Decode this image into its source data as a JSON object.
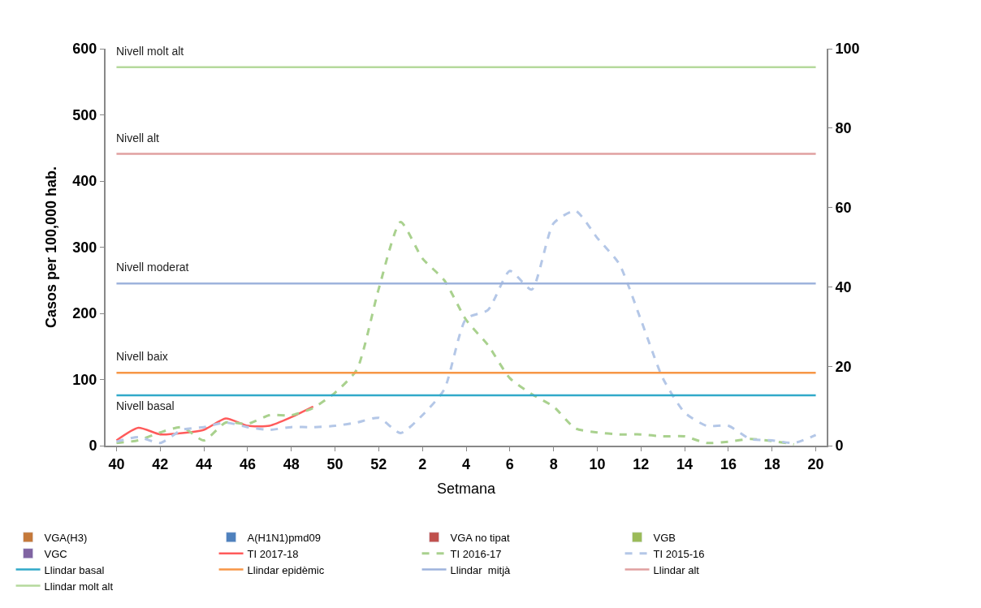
{
  "chart_data": {
    "type": "line",
    "xlabel": "Setmana",
    "ylabel": "Casos per 100,000 hab.",
    "categories": [
      "40",
      null,
      "42",
      null,
      "44",
      null,
      "46",
      null,
      "48",
      null,
      "50",
      null,
      "52",
      null,
      "2",
      null,
      "4",
      null,
      "6",
      null,
      "8",
      null,
      "10",
      null,
      "12",
      null,
      "14",
      null,
      "16",
      null,
      "18",
      null,
      "20"
    ],
    "series": [
      {
        "name": "VGA(H3)",
        "type": "bar",
        "axis": "y2",
        "color": "#c5793a",
        "values": [
          null,
          null,
          null,
          null,
          null,
          null,
          null,
          null,
          null,
          null,
          null,
          null,
          null,
          null,
          null,
          null,
          null,
          null,
          null,
          null,
          null,
          null,
          null,
          null,
          null,
          null,
          null,
          null,
          null,
          null,
          null,
          null,
          null
        ]
      },
      {
        "name": "A(H1N1)pmd09",
        "type": "bar",
        "axis": "y2",
        "color": "#4f81bd",
        "values": [
          null,
          null,
          null,
          null,
          null,
          null,
          null,
          null,
          null,
          null,
          null,
          null,
          null,
          null,
          null,
          null,
          null,
          null,
          null,
          null,
          null,
          null,
          null,
          null,
          null,
          null,
          null,
          null,
          null,
          null,
          null,
          null,
          null
        ]
      },
      {
        "name": "VGA no tipat",
        "type": "bar",
        "axis": "y2",
        "color": "#c0504d",
        "values": [
          null,
          null,
          null,
          null,
          null,
          null,
          null,
          null,
          null,
          null,
          null,
          null,
          null,
          null,
          null,
          null,
          null,
          null,
          null,
          null,
          null,
          null,
          null,
          null,
          null,
          null,
          null,
          null,
          null,
          null,
          null,
          null,
          null
        ]
      },
      {
        "name": "VGB",
        "type": "bar",
        "axis": "y2",
        "color": "#9bbb59",
        "values": [
          null,
          null,
          null,
          null,
          null,
          null,
          null,
          null,
          null,
          null,
          null,
          null,
          null,
          null,
          null,
          null,
          null,
          null,
          null,
          null,
          null,
          null,
          null,
          null,
          null,
          null,
          null,
          null,
          null,
          null,
          null,
          null,
          null
        ]
      },
      {
        "name": "VGC",
        "type": "bar",
        "axis": "y2",
        "color": "#8064a2",
        "values": [
          null,
          null,
          null,
          null,
          null,
          null,
          null,
          null,
          null,
          null,
          null,
          null,
          null,
          null,
          null,
          null,
          null,
          null,
          null,
          null,
          null,
          null,
          null,
          null,
          null,
          null,
          null,
          null,
          null,
          null,
          null,
          null,
          null
        ]
      },
      {
        "name": "TI 2017-18",
        "color": "#ff5b5b",
        "line_style": "solid",
        "values": [
          8,
          27,
          17,
          19,
          24,
          41,
          30,
          30,
          43,
          59,
          null,
          null,
          null,
          null,
          null,
          null,
          null,
          null,
          null,
          null,
          null,
          null,
          null,
          null,
          null,
          null,
          null,
          null,
          null,
          null,
          null,
          null,
          null
        ]
      },
      {
        "name": "TI 2016-17",
        "color": "#a9d18e",
        "line_style": "dashed",
        "values": [
          4,
          8,
          20,
          28,
          8,
          35,
          33,
          46,
          46,
          57,
          80,
          115,
          237,
          338,
          283,
          250,
          190,
          152,
          102,
          78,
          59,
          26,
          20,
          17,
          17,
          14,
          14,
          4,
          6,
          10,
          7,
          2,
          null
        ]
      },
      {
        "name": "TI 2015-16",
        "color": "#b4c7e7",
        "line_style": "dashed",
        "values": [
          6,
          13,
          4,
          24,
          28,
          35,
          28,
          24,
          28,
          28,
          30,
          35,
          42,
          19,
          46,
          85,
          192,
          205,
          264,
          236,
          336,
          355,
          314,
          275,
          190,
          102,
          50,
          30,
          30,
          10,
          8,
          4,
          16
        ]
      },
      {
        "name": "Llindar basal",
        "color": "#31a9c9",
        "line_style": "solid",
        "values": [
          76,
          76,
          76,
          76,
          76,
          76,
          76,
          76,
          76,
          76,
          76,
          76,
          76,
          76,
          76,
          76,
          76,
          76,
          76,
          76,
          76,
          76,
          76,
          76,
          76,
          76,
          76,
          76,
          76,
          76,
          76,
          76,
          76
        ]
      },
      {
        "name": "Llindar epidèmic",
        "color": "#f79646",
        "line_style": "solid",
        "values": [
          110,
          110,
          110,
          110,
          110,
          110,
          110,
          110,
          110,
          110,
          110,
          110,
          110,
          110,
          110,
          110,
          110,
          110,
          110,
          110,
          110,
          110,
          110,
          110,
          110,
          110,
          110,
          110,
          110,
          110,
          110,
          110,
          110
        ]
      },
      {
        "name": "Llindar  mitjà",
        "color": "#9eb3dc",
        "line_style": "solid",
        "values": [
          245,
          245,
          245,
          245,
          245,
          245,
          245,
          245,
          245,
          245,
          245,
          245,
          245,
          245,
          245,
          245,
          245,
          245,
          245,
          245,
          245,
          245,
          245,
          245,
          245,
          245,
          245,
          245,
          245,
          245,
          245,
          245,
          245
        ]
      },
      {
        "name": "Llindar alt",
        "color": "#e0a0a0",
        "line_style": "solid",
        "values": [
          441,
          441,
          441,
          441,
          441,
          441,
          441,
          441,
          441,
          441,
          441,
          441,
          441,
          441,
          441,
          441,
          441,
          441,
          441,
          441,
          441,
          441,
          441,
          441,
          441,
          441,
          441,
          441,
          441,
          441,
          441,
          441,
          441
        ]
      },
      {
        "name": "Llindar molt alt",
        "color": "#b5d99c",
        "line_style": "solid",
        "values": [
          572,
          572,
          572,
          572,
          572,
          572,
          572,
          572,
          572,
          572,
          572,
          572,
          572,
          572,
          572,
          572,
          572,
          572,
          572,
          572,
          572,
          572,
          572,
          572,
          572,
          572,
          572,
          572,
          572,
          572,
          572,
          572,
          572
        ]
      }
    ],
    "annotations": [
      {
        "text": "Nivell molt alt",
        "x": "40",
        "y": 572
      },
      {
        "text": "Nivell alt",
        "x": "40",
        "y": 441
      },
      {
        "text": "Nivell moderat",
        "x": "40",
        "y": 245
      },
      {
        "text": "Nivell baix",
        "x": "40",
        "y": 110
      },
      {
        "text": "Nivell basal",
        "x": "40",
        "y": 76
      }
    ],
    "ylim": [
      0,
      600
    ],
    "yticks": [
      0,
      100,
      200,
      300,
      400,
      500,
      600
    ],
    "y2lim": [
      0,
      100
    ],
    "y2ticks": [
      0,
      20,
      40,
      60,
      80,
      100
    ],
    "marker": "none",
    "legend": "bottom"
  }
}
